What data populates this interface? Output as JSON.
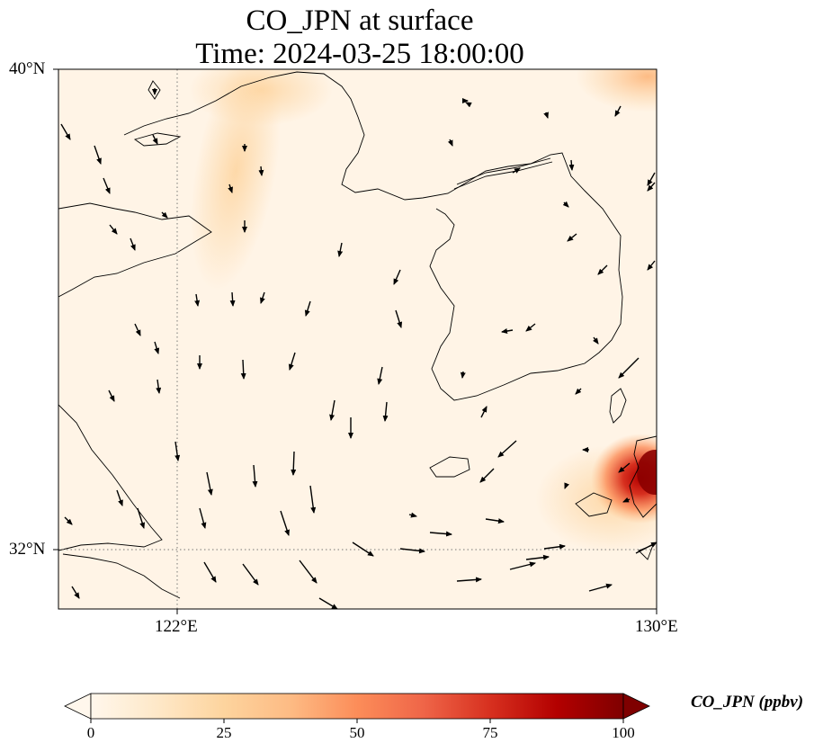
{
  "title": {
    "line1": "CO_JPN at surface",
    "line2": "Time: 2024-03-25 18:00:00"
  },
  "map": {
    "lon_range": [
      119,
      134
    ],
    "lat_range": [
      30.5,
      40
    ],
    "gridlines": {
      "lons": [
        122,
        130
      ],
      "lats": [
        32,
        40
      ],
      "style": "dotted"
    },
    "lat_ticks": [
      "40°N",
      "32°N"
    ],
    "lon_ticks": [
      "122°E",
      "130°E"
    ]
  },
  "colorbar": {
    "label": "CO_JPN (ppbv)",
    "ticks": [
      "0",
      "25",
      "50",
      "75",
      "100"
    ],
    "range": [
      0,
      100
    ],
    "colormap": "OrRd",
    "extend": "both"
  },
  "colors": {
    "background": "#fff5eb",
    "low": "#fdd49e",
    "mid": "#fc8d59",
    "high": "#b30000",
    "max": "#7f0000"
  }
}
